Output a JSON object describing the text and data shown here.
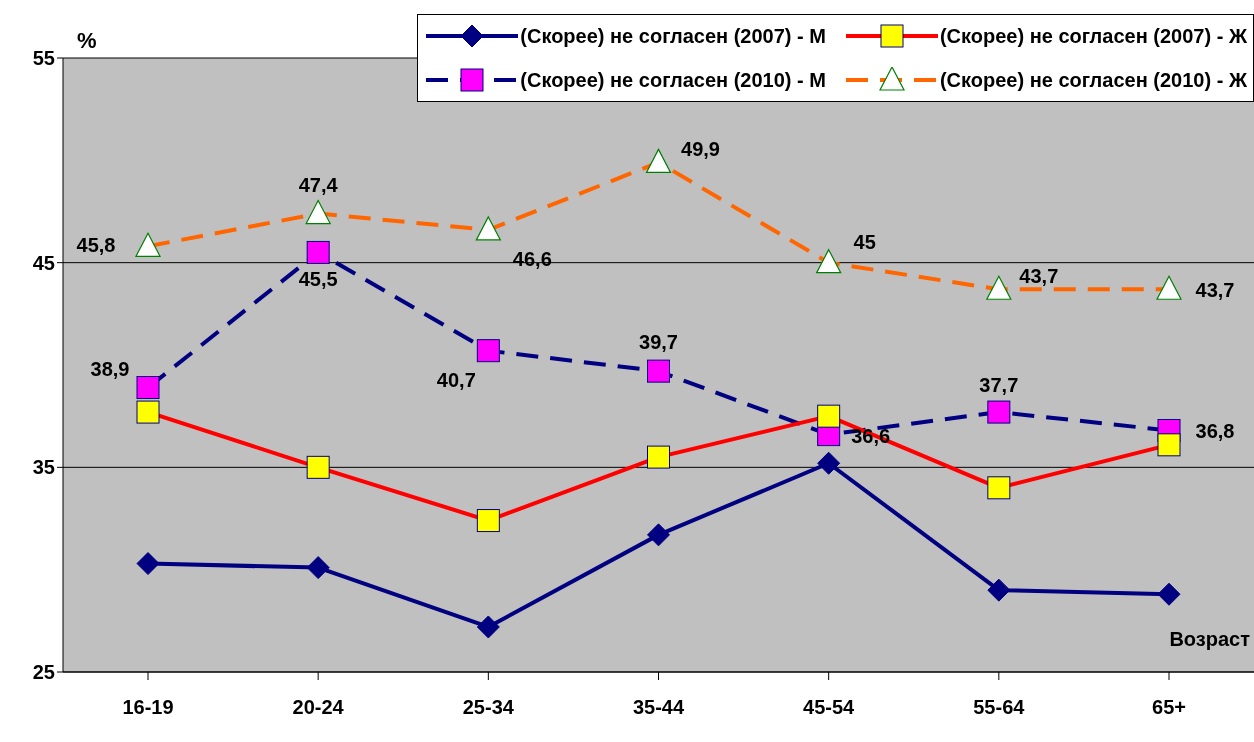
{
  "chart_data": {
    "type": "line",
    "ylabel": "%",
    "xlabel": "Возраст",
    "categories": [
      "16-19",
      "20-24",
      "25-34",
      "35-44",
      "45-54",
      "55-64",
      "65+"
    ],
    "ylim": [
      25,
      55
    ],
    "yticks": [
      25,
      35,
      45,
      55
    ],
    "grid": "y",
    "legend": "top right",
    "series": [
      {
        "name": "(Скорее) не согласен (2007) - М",
        "color": "#000080",
        "colors": [
          "#000080",
          "#000080",
          "#000080",
          "#000080",
          "#000080",
          "#000080",
          "#000080"
        ],
        "marker": "diamond",
        "line_style": "solid",
        "values": [
          30.3,
          30.1,
          27.2,
          31.7,
          35.2,
          29.0,
          28.8
        ]
      },
      {
        "name": "(Скорее) не согласен (2010) - М",
        "color": "#000080",
        "colors": [
          "#ff00ff",
          "#ff00ff",
          "#ff00ff",
          "#ff00ff",
          "#ff00ff",
          "#ff00ff",
          "#ff00ff"
        ],
        "marker": "square",
        "line_style": "dashed",
        "values": [
          38.9,
          45.5,
          40.7,
          39.7,
          36.6,
          37.7,
          36.8
        ],
        "value_labels": [
          "38,9",
          "45,5",
          "40,7",
          "39,7",
          "36,6",
          "37,7",
          "36,8"
        ]
      },
      {
        "name": "(Скорее) не согласен (2007) - Ж",
        "color": "#ff0000",
        "colors": [
          "#ffff00",
          "#ffff00",
          "#ffff00",
          "#ffff00",
          "#ffff00",
          "#ffff00",
          "#ffff00"
        ],
        "marker": "square",
        "line_style": "solid",
        "values": [
          37.7,
          35.0,
          32.4,
          35.5,
          37.5,
          34.0,
          36.1
        ]
      },
      {
        "name": "(Скорее) не согласен (2010) - Ж",
        "color": "#ff6600",
        "colors": [
          "#ffffff",
          "#ffffff",
          "#ffffff",
          "#ffffff",
          "#ffffff",
          "#ffffff",
          "#ffffff"
        ],
        "marker": "triangle",
        "line_style": "dashed",
        "values": [
          45.8,
          47.4,
          46.6,
          49.9,
          45,
          43.7,
          43.7
        ],
        "value_labels": [
          "45,8",
          "47,4",
          "46,6",
          "49,9",
          "45",
          "43,7",
          "43,7"
        ]
      }
    ]
  }
}
